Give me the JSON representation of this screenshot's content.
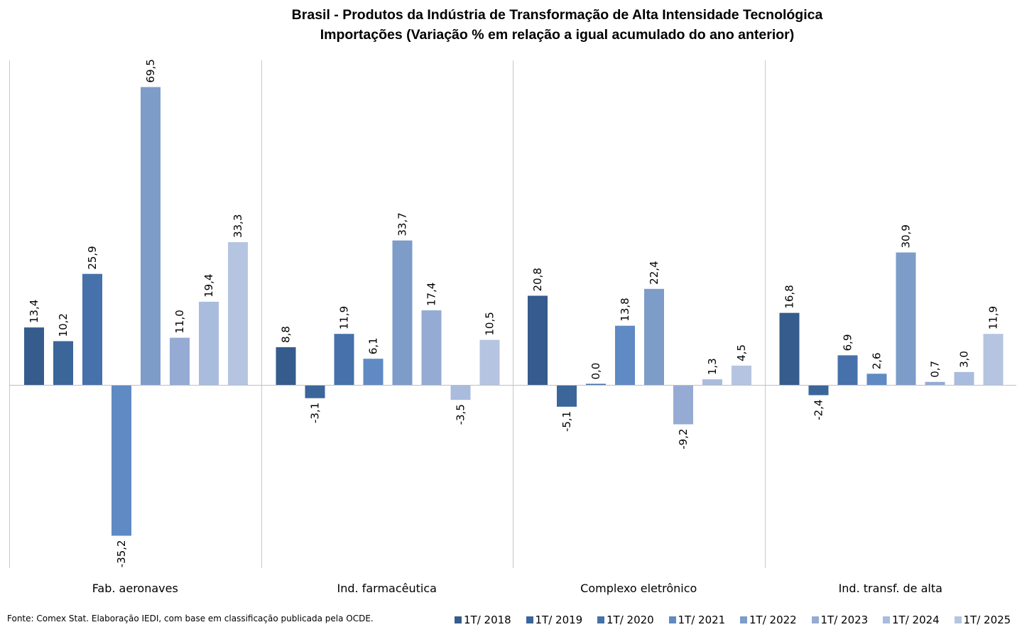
{
  "title": "Brasil - Produtos da Indústria de Transformação de Alta Intensidade Tecnológica",
  "subtitle": "Importações (Variação % em relação a igual acumulado do ano anterior)",
  "source": "Fonte: Comex Stat. Elaboração IEDI, com base em classificação publicada pela OCDE.",
  "chart_data": {
    "type": "bar",
    "title": "Brasil - Produtos da Indústria de Transformação de Alta Intensidade Tecnológica",
    "subtitle": "Importações (Variação % em relação a igual acumulado do ano anterior)",
    "categories": [
      "Fab. aeronaves",
      "Ind. farmacêutica",
      "Complexo eletrônico",
      "Ind. transf. de alta"
    ],
    "series": [
      {
        "name": "1T/ 2018",
        "color": "#355C8C",
        "values": [
          13.4,
          8.8,
          20.8,
          16.8
        ],
        "labels": [
          "13,4",
          "8,8",
          "20,8",
          "16,8"
        ]
      },
      {
        "name": "1T/ 2019",
        "color": "#3B6699",
        "values": [
          10.2,
          -3.1,
          -5.1,
          -2.4
        ],
        "labels": [
          "10,2",
          "-3,1",
          "-5,1",
          "-2,4"
        ]
      },
      {
        "name": "1T/ 2020",
        "color": "#4671AA",
        "values": [
          25.9,
          11.9,
          0.0,
          6.9
        ],
        "labels": [
          "25,9",
          "11,9",
          "0,0",
          "6,9"
        ]
      },
      {
        "name": "1T/ 2021",
        "color": "#5F8AC4",
        "values": [
          -35.2,
          6.1,
          13.8,
          2.6
        ],
        "labels": [
          "-35,2",
          "6,1",
          "13,8",
          "2,6"
        ]
      },
      {
        "name": "1T/ 2022",
        "color": "#7E9CC8",
        "values": [
          69.5,
          33.7,
          22.4,
          30.9
        ],
        "labels": [
          "69,5",
          "33,7",
          "22,4",
          "30,9"
        ]
      },
      {
        "name": "1T/ 2023",
        "color": "#95ABD3",
        "values": [
          11.0,
          17.4,
          -9.2,
          0.7
        ],
        "labels": [
          "11,0",
          "17,4",
          "-9,2",
          "0,7"
        ]
      },
      {
        "name": "1T/ 2024",
        "color": "#A9BCDD",
        "values": [
          19.4,
          -3.5,
          1.3,
          3.0
        ],
        "labels": [
          "19,4",
          "-3,5",
          "1,3",
          "3,0"
        ]
      },
      {
        "name": "1T/ 2025",
        "color": "#B5C4E0",
        "values": [
          33.3,
          10.5,
          4.5,
          11.9
        ],
        "labels": [
          "33,3",
          "10,5",
          "4,5",
          "11,9"
        ]
      }
    ],
    "legend_position": "bottom-right",
    "grid": false,
    "group_separators": true
  }
}
